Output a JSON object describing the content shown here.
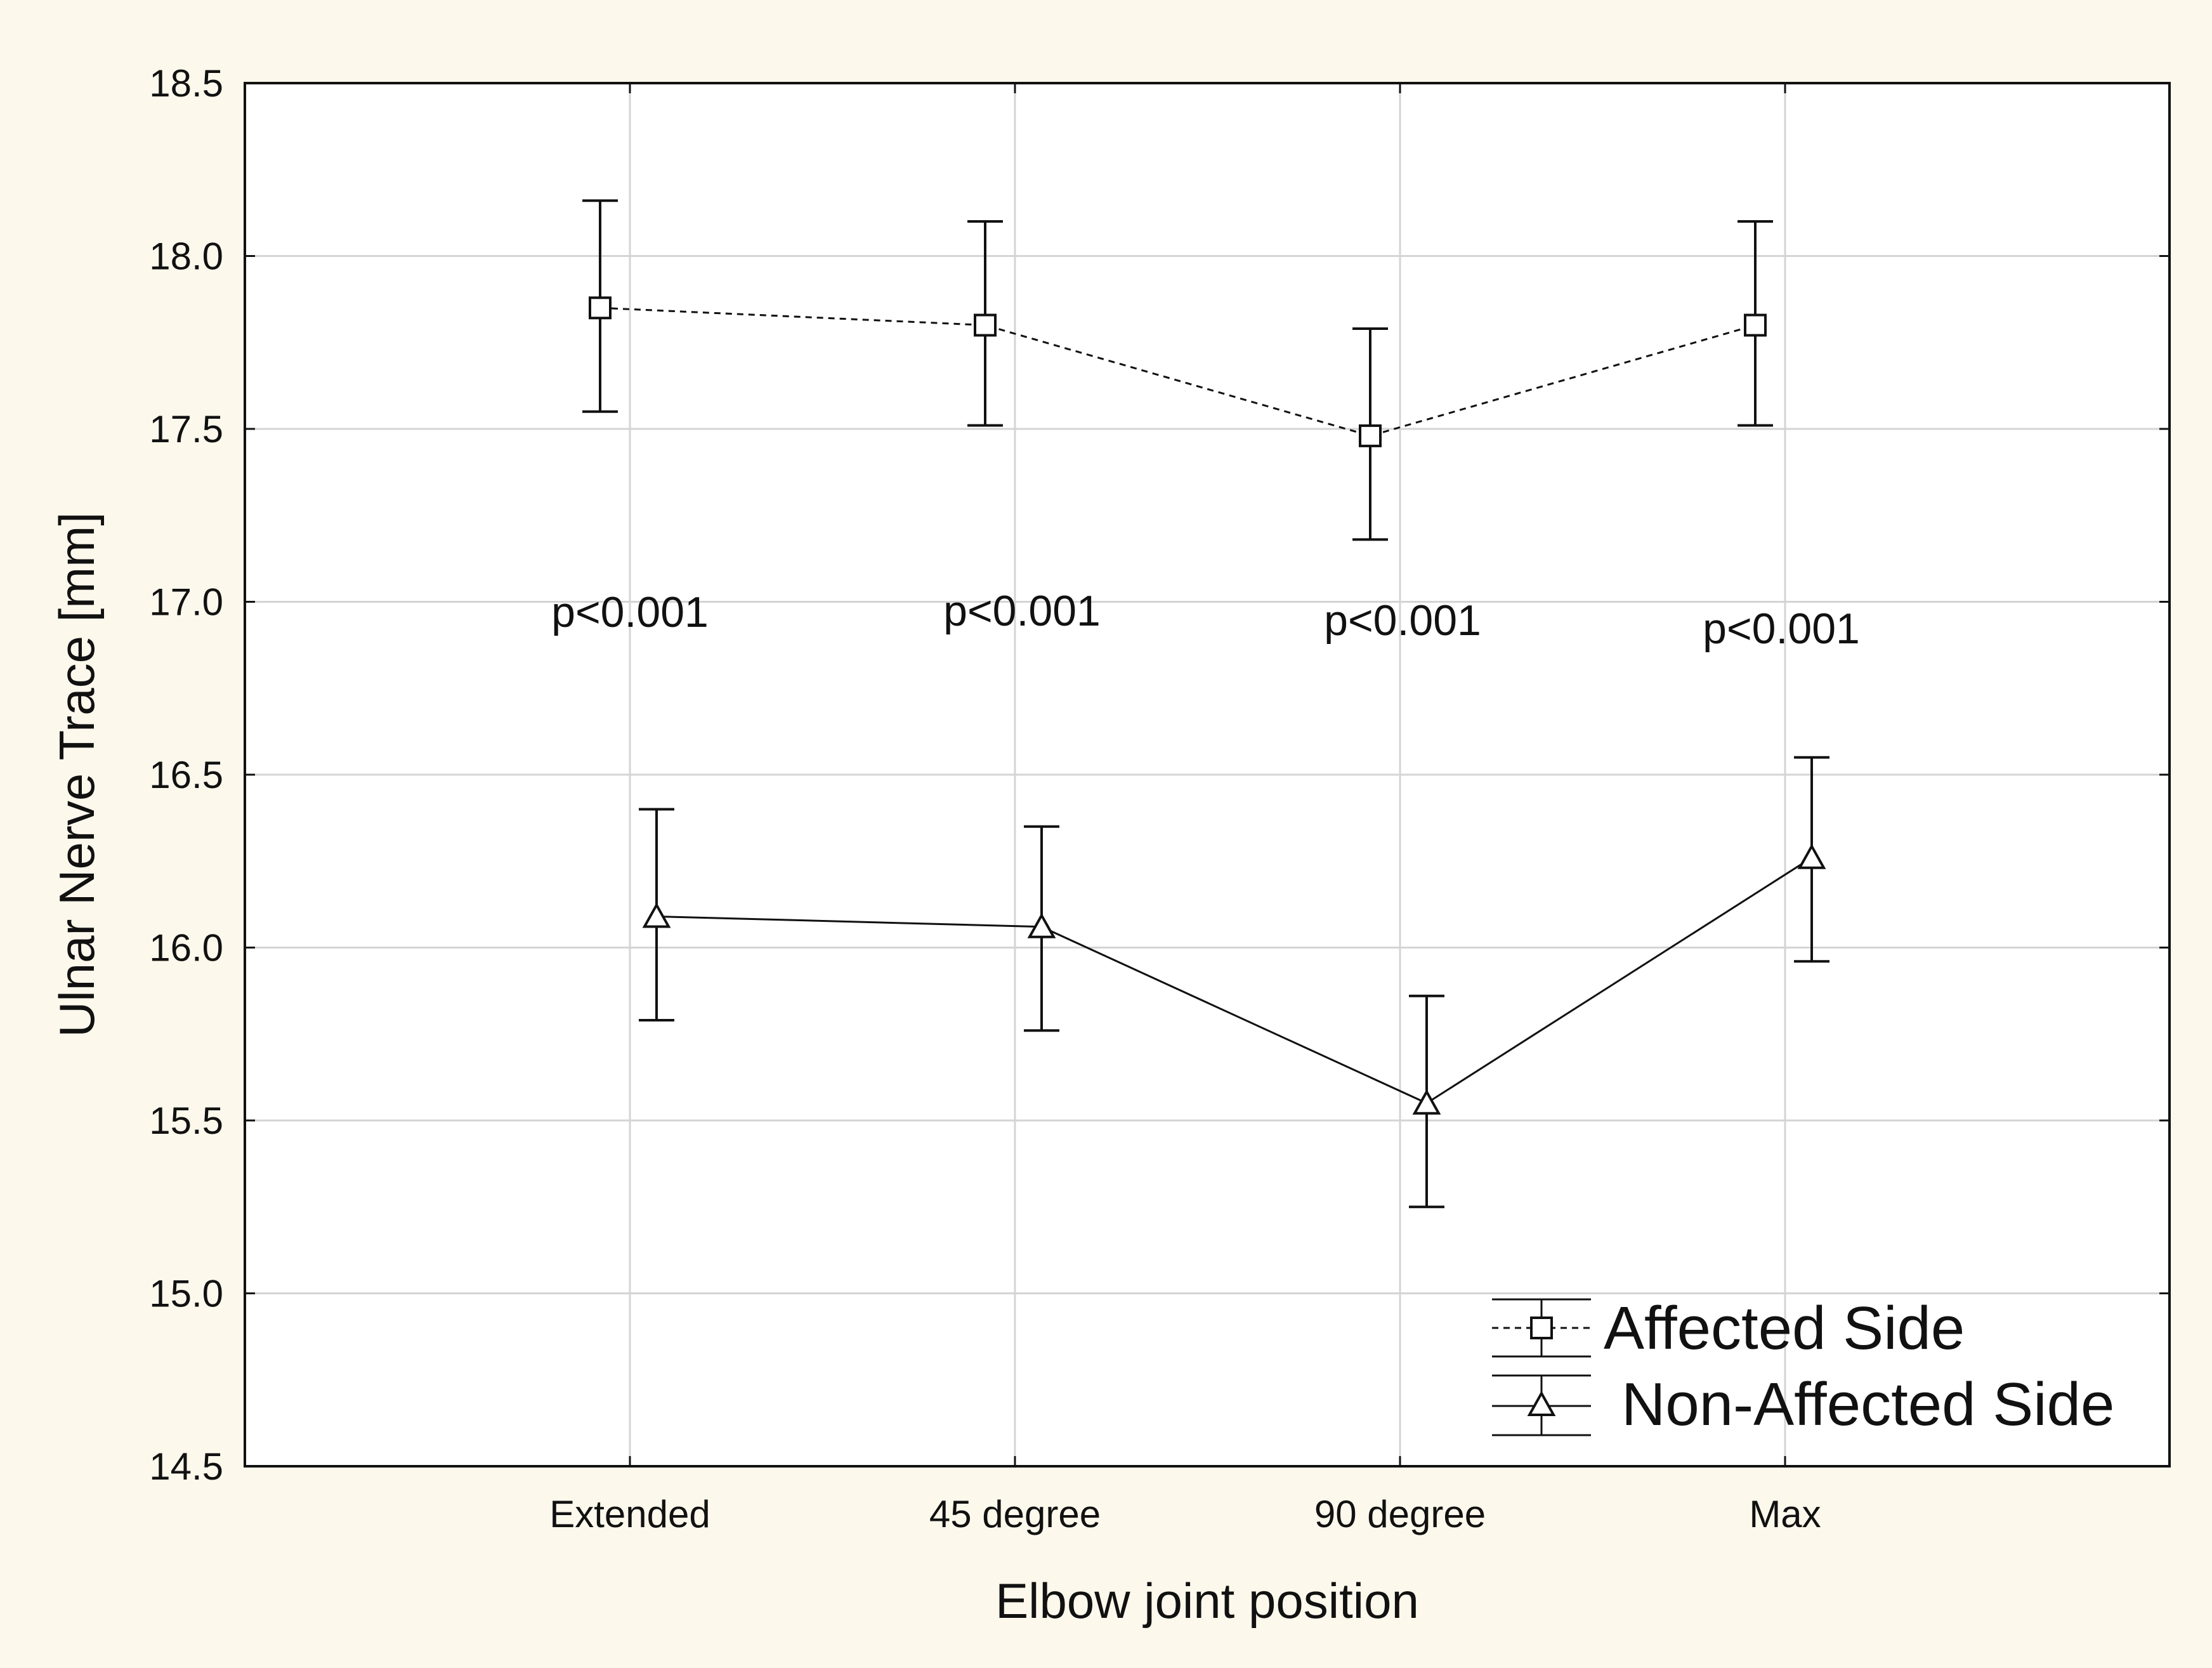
{
  "chart_data": {
    "type": "line",
    "title": "",
    "xlabel": "Elbow joint position",
    "ylabel": "Ulnar Nerve Trace [mm]",
    "categories": [
      "Extended",
      "45 degree",
      "90 degree",
      "Max"
    ],
    "ylim": [
      14.5,
      18.5
    ],
    "yticks": [
      "18.5",
      "18.0",
      "17.5",
      "17.0",
      "16.5",
      "16.0",
      "15.5",
      "15.0",
      "14.5"
    ],
    "ytick_values": [
      18.5,
      18.0,
      17.5,
      17.0,
      16.5,
      16.0,
      15.5,
      15.0,
      14.5
    ],
    "grid": true,
    "legend_position": "bottom-right",
    "series": [
      {
        "name": "Affected Side",
        "marker": "square",
        "line_style": "dashed",
        "color": "#111111",
        "values": [
          17.85,
          17.8,
          17.48,
          17.8
        ],
        "err_low": [
          17.55,
          17.51,
          17.18,
          17.51
        ],
        "err_high": [
          18.16,
          18.1,
          17.79,
          18.1
        ]
      },
      {
        "name": "Non-Affected Side",
        "marker": "triangle",
        "line_style": "solid",
        "color": "#111111",
        "values": [
          16.09,
          16.06,
          15.55,
          16.26
        ],
        "err_low": [
          15.79,
          15.76,
          15.25,
          15.96
        ],
        "err_high": [
          16.4,
          16.35,
          15.86,
          16.55
        ]
      }
    ],
    "annotations": [
      "p<0.001",
      "p<0.001",
      "p<0.001",
      "p<0.001"
    ]
  },
  "colors": {
    "page_background": "#fcf8ec",
    "plot_background": "#ffffff",
    "gridline": "#d4d4d4",
    "ink": "#111111"
  }
}
